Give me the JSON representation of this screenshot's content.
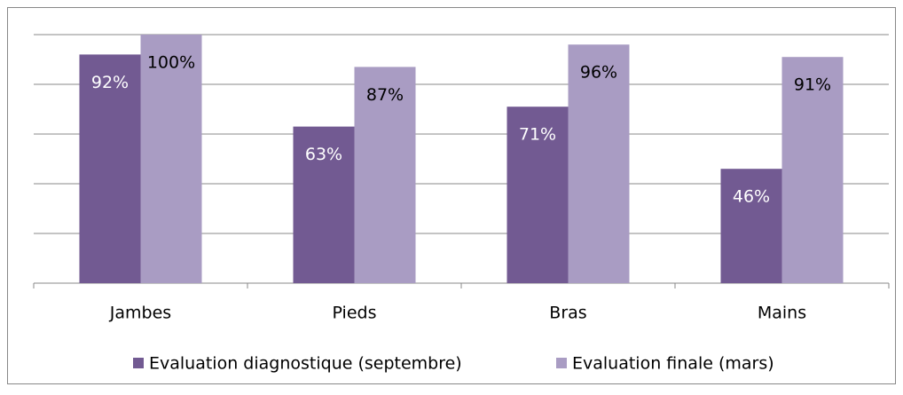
{
  "chart_data": {
    "type": "bar",
    "categories": [
      "Jambes",
      "Pieds",
      "Bras",
      "Mains"
    ],
    "series": [
      {
        "name": "Evaluation diagnostique (septembre)",
        "color": "#725a92",
        "values": [
          92,
          63,
          71,
          46
        ],
        "value_labels": [
          "92%",
          "63%",
          "71%",
          "46%"
        ]
      },
      {
        "name": "Evaluation finale (mars)",
        "color": "#a99cc3",
        "values": [
          100,
          87,
          96,
          91
        ],
        "value_labels": [
          "100%",
          "87%",
          "96%",
          "91%"
        ]
      }
    ],
    "ylim": [
      0,
      100
    ],
    "yticks": [
      0,
      20,
      40,
      60,
      80,
      100
    ],
    "grid": true,
    "legend": "bottom"
  }
}
